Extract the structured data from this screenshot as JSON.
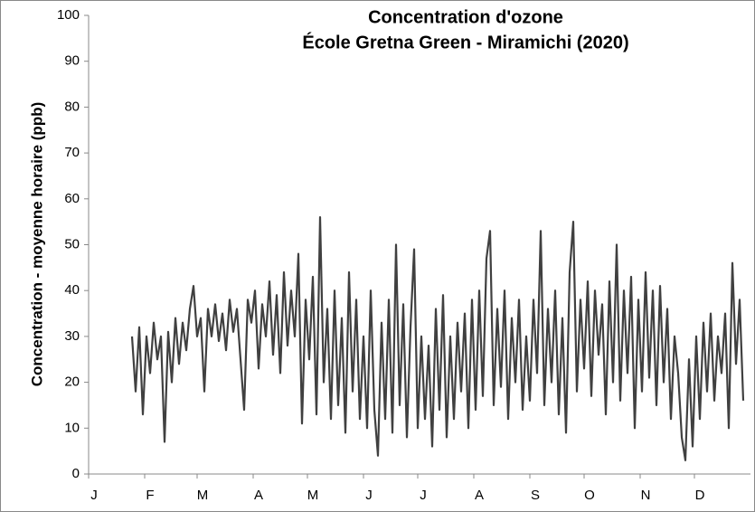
{
  "chart_data": {
    "type": "line",
    "title": "Concentration d'ozone",
    "subtitle": "École Gretna Green - Miramichi (2020)",
    "y_label": "Concentration - moyenne horaire (ppb)",
    "xlim": [
      0,
      366
    ],
    "xticks": [
      {
        "value": 0,
        "label": "J"
      },
      {
        "value": 31,
        "label": "F"
      },
      {
        "value": 60,
        "label": "M"
      },
      {
        "value": 91,
        "label": "A"
      },
      {
        "value": 121,
        "label": "M"
      },
      {
        "value": 152,
        "label": "J"
      },
      {
        "value": 182,
        "label": "J"
      },
      {
        "value": 213,
        "label": "A"
      },
      {
        "value": 244,
        "label": "S"
      },
      {
        "value": 274,
        "label": "O"
      },
      {
        "value": 305,
        "label": "N"
      },
      {
        "value": 335,
        "label": "D"
      }
    ],
    "ylim": [
      0,
      100
    ],
    "yticks": [
      0,
      10,
      20,
      30,
      40,
      50,
      60,
      70,
      80,
      90,
      100
    ],
    "grid": false,
    "x": [
      24,
      26,
      28,
      30,
      32,
      34,
      36,
      38,
      40,
      42,
      44,
      46,
      48,
      50,
      52,
      54,
      56,
      58,
      60,
      62,
      64,
      66,
      68,
      70,
      72,
      74,
      76,
      78,
      80,
      82,
      84,
      86,
      88,
      90,
      92,
      94,
      96,
      98,
      100,
      102,
      104,
      106,
      108,
      110,
      112,
      114,
      116,
      118,
      120,
      122,
      124,
      126,
      128,
      130,
      132,
      134,
      136,
      138,
      140,
      142,
      144,
      146,
      148,
      150,
      152,
      154,
      156,
      158,
      160,
      162,
      164,
      166,
      168,
      170,
      172,
      174,
      176,
      178,
      180,
      182,
      184,
      186,
      188,
      190,
      192,
      194,
      196,
      198,
      200,
      202,
      204,
      206,
      208,
      210,
      212,
      214,
      216,
      218,
      220,
      222,
      224,
      226,
      228,
      230,
      232,
      234,
      236,
      238,
      240,
      242,
      244,
      246,
      248,
      250,
      252,
      254,
      256,
      258,
      260,
      262,
      264,
      266,
      268,
      270,
      272,
      274,
      276,
      278,
      280,
      282,
      284,
      286,
      288,
      290,
      292,
      294,
      296,
      298,
      300,
      302,
      304,
      306,
      308,
      310,
      312,
      314,
      316,
      318,
      320,
      322,
      324,
      326,
      328,
      330,
      332,
      334,
      336,
      338,
      340,
      342,
      344,
      346,
      348,
      350,
      352,
      354,
      356,
      358,
      360,
      362
    ],
    "series": [
      {
        "color": "#404040",
        "values": [
          30,
          18,
          32,
          13,
          30,
          22,
          33,
          25,
          30,
          7,
          31,
          20,
          34,
          24,
          33,
          27,
          36,
          41,
          30,
          34,
          18,
          36,
          30,
          37,
          29,
          35,
          27,
          38,
          31,
          36,
          25,
          14,
          38,
          33,
          40,
          23,
          37,
          30,
          42,
          26,
          39,
          22,
          44,
          28,
          40,
          30,
          48,
          11,
          38,
          25,
          43,
          13,
          56,
          20,
          36,
          12,
          40,
          15,
          34,
          9,
          44,
          18,
          38,
          12,
          30,
          10,
          40,
          14,
          4,
          33,
          12,
          38,
          9,
          50,
          15,
          37,
          8,
          32,
          49,
          10,
          30,
          12,
          28,
          6,
          36,
          14,
          39,
          8,
          30,
          12,
          33,
          18,
          35,
          10,
          38,
          14,
          40,
          17,
          47,
          53,
          15,
          36,
          19,
          40,
          12,
          34,
          20,
          38,
          14,
          30,
          16,
          38,
          22,
          53,
          15,
          36,
          20,
          40,
          13,
          34,
          9,
          44,
          55,
          18,
          38,
          23,
          42,
          17,
          40,
          26,
          37,
          13,
          42,
          20,
          50,
          16,
          40,
          22,
          43,
          10,
          38,
          18,
          44,
          21,
          40,
          15,
          41,
          20,
          36,
          12,
          30,
          22,
          8,
          3,
          25,
          6,
          30,
          12,
          33,
          18,
          35,
          16,
          30,
          22,
          35,
          10,
          46,
          24,
          38,
          16
        ]
      }
    ]
  }
}
